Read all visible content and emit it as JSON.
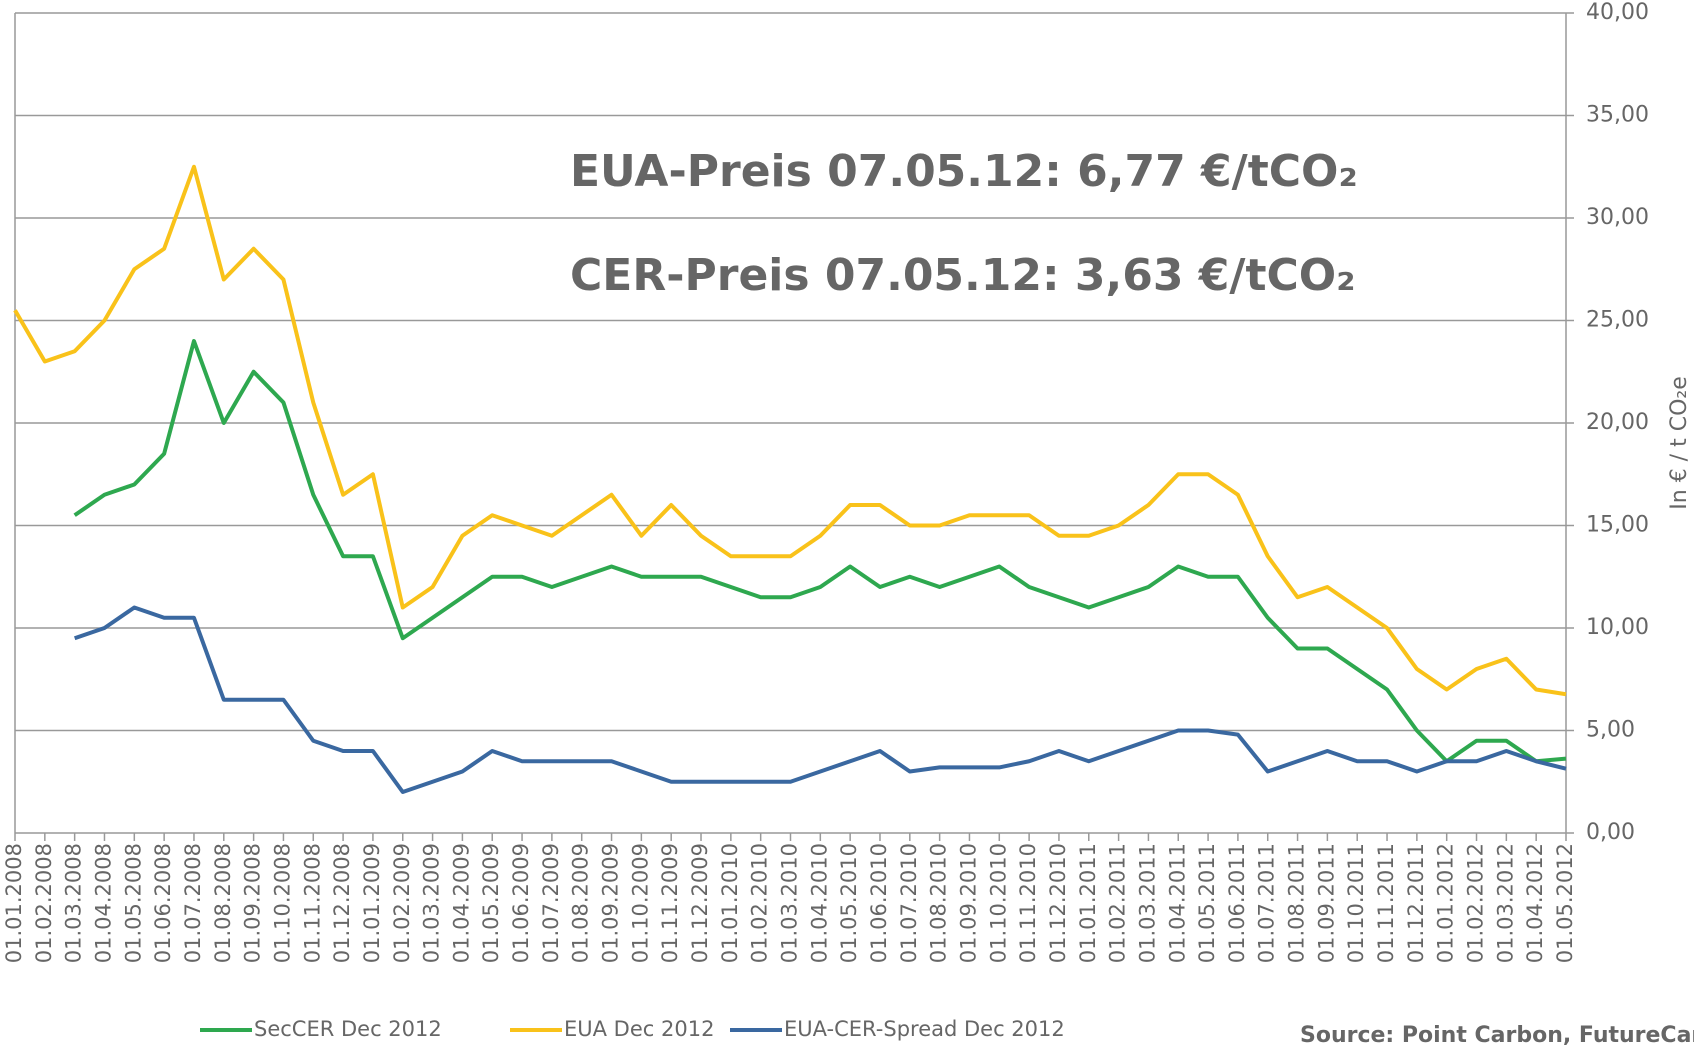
{
  "chart_data": {
    "type": "line",
    "annotations": [
      {
        "text": "EUA-Preis 07.05.12: 6,77 €/tCO₂",
        "color": "#f9be1c"
      },
      {
        "text": "CER-Preis 07.05.12: 3,63 €/tCO₂",
        "color": "#34c03a"
      }
    ],
    "y_label": "In € / t CO₂e",
    "source": "Source: Point Carbon, FutureCamp",
    "categories": [
      "01.01.2008",
      "01.02.2008",
      "01.03.2008",
      "01.04.2008",
      "01.05.2008",
      "01.06.2008",
      "01.07.2008",
      "01.08.2008",
      "01.09.2008",
      "01.10.2008",
      "01.11.2008",
      "01.12.2008",
      "01.01.2009",
      "01.02.2009",
      "01.03.2009",
      "01.04.2009",
      "01.05.2009",
      "01.06.2009",
      "01.07.2009",
      "01.08.2009",
      "01.09.2009",
      "01.10.2009",
      "01.11.2009",
      "01.12.2009",
      "01.01.2010",
      "01.02.2010",
      "01.03.2010",
      "01.04.2010",
      "01.05.2010",
      "01.06.2010",
      "01.07.2010",
      "01.08.2010",
      "01.09.2010",
      "01.10.2010",
      "01.11.2010",
      "01.12.2010",
      "01.01.2011",
      "01.02.2011",
      "01.03.2011",
      "01.04.2011",
      "01.05.2011",
      "01.06.2011",
      "01.07.2011",
      "01.08.2011",
      "01.09.2011",
      "01.10.2011",
      "01.11.2011",
      "01.12.2011",
      "01.01.2012",
      "01.02.2012",
      "01.03.2012",
      "01.04.2012",
      "01.05.2012"
    ],
    "series": [
      {
        "name": "SecCER Dec 2012",
        "color": "#2ea84f",
        "values": [
          null,
          null,
          15.5,
          16.5,
          17,
          18.5,
          24,
          20,
          22.5,
          21,
          16.5,
          13.5,
          13.5,
          9.5,
          10.5,
          11.5,
          12.5,
          12.5,
          12,
          12.5,
          13,
          12.5,
          12.5,
          12.5,
          12,
          11.5,
          11.5,
          12,
          13,
          12,
          12.5,
          12,
          12.5,
          13,
          12,
          11.5,
          11,
          11.5,
          12,
          13,
          12.5,
          12.5,
          10.5,
          9,
          9,
          8,
          7,
          5,
          3.5,
          4.5,
          4.5,
          3.5,
          3.63
        ]
      },
      {
        "name": "EUA Dec 2012",
        "color": "#f9c21a",
        "values": [
          25.5,
          23,
          23.5,
          25,
          27.5,
          28.5,
          32.5,
          27,
          28.5,
          27,
          21,
          16.5,
          17.5,
          11,
          12,
          14.5,
          15.5,
          15,
          14.5,
          15.5,
          16.5,
          14.5,
          16,
          14.5,
          13.5,
          13.5,
          13.5,
          14.5,
          16,
          16,
          15,
          15,
          15.5,
          15.5,
          15.5,
          14.5,
          14.5,
          15,
          16,
          17.5,
          17.5,
          16.5,
          13.5,
          11.5,
          12,
          11,
          10,
          8,
          7,
          8,
          8.5,
          7,
          6.77
        ]
      },
      {
        "name": "EUA-CER-Spread Dec 2012",
        "color": "#3a68a0",
        "values": [
          null,
          null,
          9.5,
          10,
          11,
          10.5,
          10.5,
          6.5,
          6.5,
          6.5,
          4.5,
          4,
          4,
          2,
          2.5,
          3,
          4,
          3.5,
          3.5,
          3.5,
          3.5,
          3,
          2.5,
          2.5,
          2.5,
          2.5,
          2.5,
          3,
          3.5,
          4,
          3,
          3.2,
          3.2,
          3.2,
          3.5,
          4,
          3.5,
          4,
          4.5,
          5,
          5,
          4.8,
          3,
          3.5,
          4,
          3.5,
          3.5,
          3,
          3.5,
          3.5,
          4,
          3.5,
          3.14
        ]
      }
    ],
    "ylim": [
      0,
      40
    ],
    "yticks": [
      {
        "value": 0,
        "label": "0,00"
      },
      {
        "value": 5,
        "label": "5,00"
      },
      {
        "value": 10,
        "label": "10,00"
      },
      {
        "value": 15,
        "label": "15,00"
      },
      {
        "value": 20,
        "label": "20,00"
      },
      {
        "value": 25,
        "label": "25,00"
      },
      {
        "value": 30,
        "label": "30,00"
      },
      {
        "value": 35,
        "label": "35,00"
      },
      {
        "value": 40,
        "label": "40,00"
      }
    ],
    "grid": true
  }
}
